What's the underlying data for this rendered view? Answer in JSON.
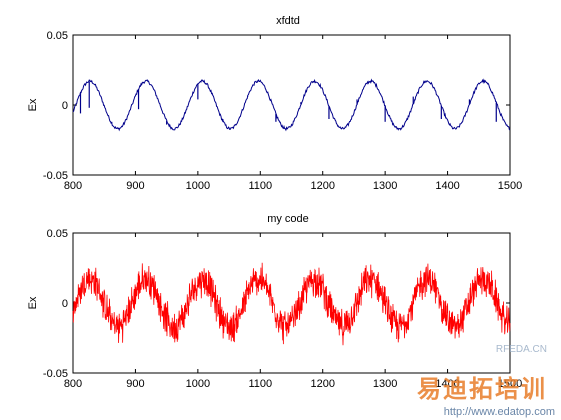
{
  "chart_data": [
    {
      "type": "line",
      "title": "xfdtd",
      "xlabel": "",
      "ylabel": "Ex",
      "xlim": [
        800,
        1500
      ],
      "ylim": [
        -0.05,
        0.05
      ],
      "x_ticks": [
        "800",
        "900",
        "1000",
        "1100",
        "1200",
        "1300",
        "1400",
        "1500"
      ],
      "y_ticks": [
        "0.05",
        "0",
        "-0.05"
      ],
      "series": [
        {
          "color": "#00008b",
          "shape": "sinusoid",
          "amplitude": 0.017,
          "period": 90,
          "phase_x": 827,
          "x": [
            800,
            1500
          ],
          "spikes": [
            {
              "x": 812,
              "y": -0.006
            },
            {
              "x": 826,
              "y": -0.002
            },
            {
              "x": 862,
              "y": -0.012
            },
            {
              "x": 905,
              "y": -0.003
            },
            {
              "x": 950,
              "y": -0.014
            },
            {
              "x": 1000,
              "y": 0.004
            },
            {
              "x": 1040,
              "y": -0.01
            },
            {
              "x": 1080,
              "y": 0.006
            },
            {
              "x": 1125,
              "y": -0.012
            },
            {
              "x": 1165,
              "y": 0.002
            },
            {
              "x": 1210,
              "y": -0.01
            },
            {
              "x": 1255,
              "y": 0.004
            },
            {
              "x": 1300,
              "y": -0.012
            },
            {
              "x": 1345,
              "y": 0.006
            },
            {
              "x": 1390,
              "y": -0.01
            },
            {
              "x": 1435,
              "y": 0.004
            },
            {
              "x": 1478,
              "y": -0.012
            }
          ]
        }
      ]
    },
    {
      "type": "line",
      "title": "my code",
      "xlabel": "",
      "ylabel": "Ex",
      "xlim": [
        800,
        1500
      ],
      "ylim": [
        -0.05,
        0.05
      ],
      "x_ticks": [
        "800",
        "900",
        "1000",
        "1100",
        "1200",
        "1300",
        "1400",
        "1500"
      ],
      "y_ticks": [
        "0.05",
        "0",
        "-0.05"
      ],
      "series": [
        {
          "color": "#ff0000",
          "shape": "noisy-sinusoid",
          "amplitude": 0.017,
          "period": 90,
          "phase_x": 827,
          "noise_amplitude": 0.012,
          "x": [
            800,
            1500
          ]
        }
      ]
    }
  ],
  "watermark": {
    "top_text": "RFEDA.CN",
    "brand_text": "易迪拓培训",
    "url": "http://www.edatop.com"
  }
}
